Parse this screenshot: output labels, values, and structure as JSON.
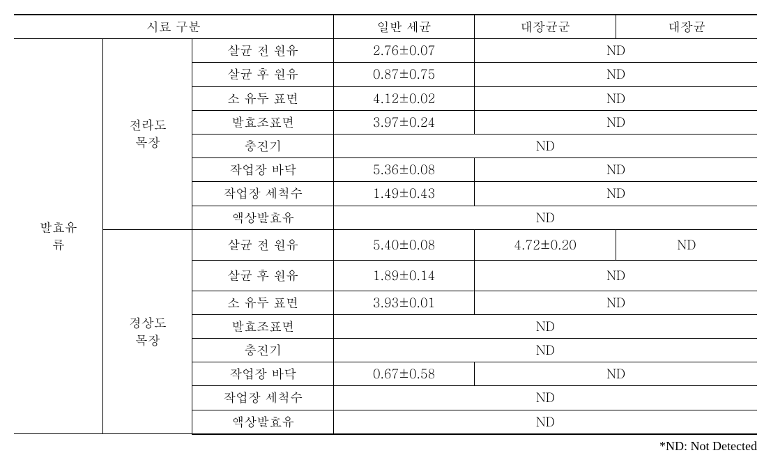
{
  "header": {
    "sample_category": "시료 구분",
    "general_bacteria": "일반 세균",
    "coliform": "대장균군",
    "ecoli": "대장균"
  },
  "category": {
    "fermented_milk_line1": "발효유",
    "fermented_milk_line2": "류"
  },
  "farms": {
    "jeolla_line1": "전라도",
    "jeolla_line2": "목장",
    "gyeongsang_line1": "경상도",
    "gyeongsang_line2": "목장"
  },
  "items": {
    "raw_milk_before": "살균 전 원유",
    "raw_milk_after": "살균 후 원유",
    "teat_surface": "소 유두 표면",
    "ferment_tank_surface": "발효조표면",
    "filler": "충진기",
    "floor": "작업장 바닥",
    "wash_water": "작업장 세척수",
    "liquid_fermented": "액상발효유"
  },
  "values": {
    "jeolla": {
      "raw_before_gen": "2.76±0.07",
      "raw_after_gen": "0.87±0.75",
      "teat_gen": "4.12±0.02",
      "tank_gen": "3.97±0.24",
      "floor_gen": "5.36±0.08",
      "wash_gen": "1.49±0.43"
    },
    "gyeongsang": {
      "raw_before_gen": "5.40±0.08",
      "raw_before_coli": "4.72±0.20",
      "raw_after_gen": "1.89±0.14",
      "teat_gen": "3.93±0.01",
      "floor_gen": "0.67±0.58"
    },
    "nd": "ND"
  },
  "footnote": "*ND: Not Detected",
  "style": {
    "font_size": "18px",
    "line_height": "1.4",
    "text_color": "#000000",
    "bg_color": "#ffffff",
    "border_color": "#000000"
  }
}
